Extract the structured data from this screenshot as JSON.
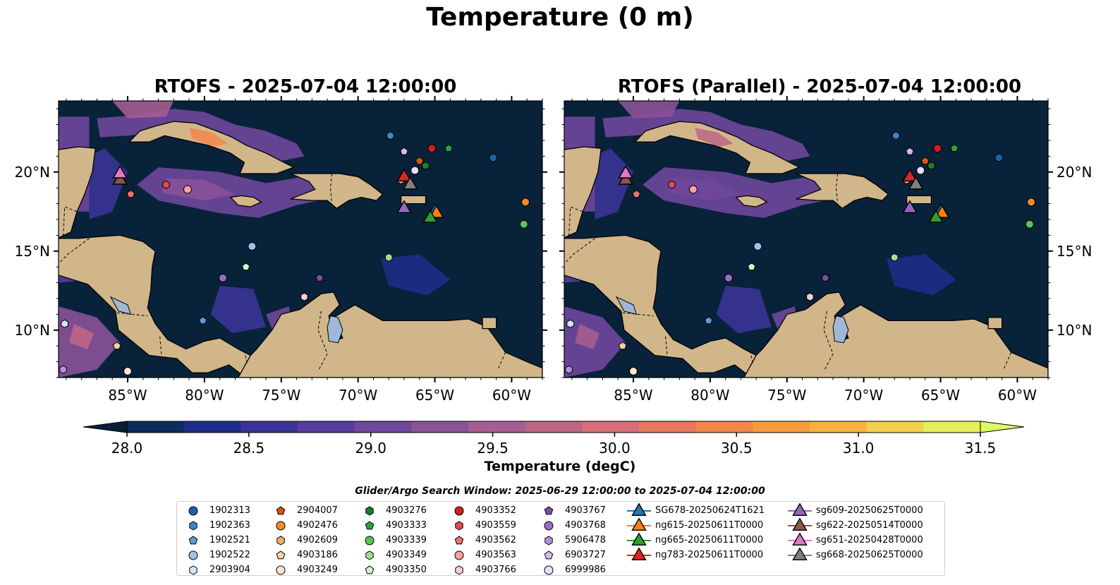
{
  "title": "Temperature (0 m)",
  "panels": [
    {
      "title": "RTOFS - 2025-07-04 12:00:00"
    },
    {
      "title": "RTOFS (Parallel) - 2025-07-04 12:00:00"
    }
  ],
  "map": {
    "lon_range": [
      -89.5,
      -58
    ],
    "lat_range": [
      7,
      24.5
    ],
    "lon_ticks": [
      "85°W",
      "80°W",
      "75°W",
      "70°W",
      "65°W",
      "60°W"
    ],
    "lon_tick_values": [
      -85,
      -80,
      -75,
      -70,
      -65,
      -60
    ],
    "lat_ticks": [
      "10°N",
      "15°N",
      "20°N"
    ],
    "lat_tick_values": [
      10,
      15,
      20
    ],
    "colors": {
      "ocean": "#08223a",
      "land": "#d1b68a",
      "lakes": "#9fb8d6"
    }
  },
  "colorbar": {
    "label": "Temperature (degC)",
    "ticks": [
      "28.0",
      "28.5",
      "29.0",
      "29.5",
      "30.0",
      "30.5",
      "31.0",
      "31.5"
    ],
    "tick_values": [
      28.0,
      28.5,
      29.0,
      29.5,
      30.0,
      30.5,
      31.0,
      31.5
    ],
    "range": [
      28.0,
      31.5
    ],
    "extend": "both",
    "colors": [
      "#082037",
      "#0b2c5e",
      "#1e2d88",
      "#3b3497",
      "#563c9a",
      "#6f479c",
      "#8a5299",
      "#a55d92",
      "#bd6686",
      "#d66f78",
      "#e9785f",
      "#f4874a",
      "#f89b3d",
      "#f8b23f",
      "#f2cf4f",
      "#e5ee5e",
      "#ddfb66"
    ]
  },
  "legend": {
    "title": "Glider/Argo Search Window: 2025-06-29 12:00:00 to 2025-07-04 12:00:00",
    "columns": [
      [
        {
          "label": "1902313",
          "marker": "circle",
          "color": "#1f5fa8",
          "lon": -61.2,
          "lat": 20.9
        },
        {
          "label": "1902363",
          "marker": "hexagon",
          "color": "#3f84c4",
          "lon": -67.9,
          "lat": 22.3
        },
        {
          "label": "1902521",
          "marker": "pentagon",
          "color": "#5c9bd6",
          "lon": -80.1,
          "lat": 10.6
        },
        {
          "label": "1902522",
          "marker": "circle",
          "color": "#9dc3e8",
          "lon": -76.9,
          "lat": 15.3
        },
        {
          "label": "2903904",
          "marker": "hexagon",
          "color": "#d2e4f5",
          "lon": -89.1,
          "lat": 10.4
        }
      ],
      [
        {
          "label": "2904007",
          "marker": "pentagon",
          "color": "#d2590c",
          "lon": -66.0,
          "lat": 20.7
        },
        {
          "label": "4902476",
          "marker": "circle",
          "color": "#f48a30",
          "lon": -59.1,
          "lat": 18.1
        },
        {
          "label": "4902609",
          "marker": "hexagon",
          "color": "#fbad6b",
          "lon": -67.2,
          "lat": 19.5
        },
        {
          "label": "4903186",
          "marker": "pentagon",
          "color": "#fdd2a0",
          "lon": -85.7,
          "lat": 9.0
        },
        {
          "label": "4903249",
          "marker": "circle",
          "color": "#fee6cd",
          "lon": -85.0,
          "lat": 7.4
        }
      ],
      [
        {
          "label": "4903276",
          "marker": "hexagon",
          "color": "#1b7d2c",
          "lon": -65.6,
          "lat": 20.4
        },
        {
          "label": "4903333",
          "marker": "pentagon",
          "color": "#2ea043",
          "lon": -64.1,
          "lat": 21.5
        },
        {
          "label": "4903339",
          "marker": "circle",
          "color": "#5ac35c",
          "lon": -59.2,
          "lat": 16.7
        },
        {
          "label": "4903349",
          "marker": "hexagon",
          "color": "#9ee091",
          "lon": -68.0,
          "lat": 14.6
        },
        {
          "label": "4903350",
          "marker": "pentagon",
          "color": "#d1f4c7",
          "lon": -77.3,
          "lat": 14.0
        }
      ],
      [
        {
          "label": "4903352",
          "marker": "circle",
          "color": "#d21f1f",
          "lon": -65.2,
          "lat": 21.5
        },
        {
          "label": "4903559",
          "marker": "hexagon",
          "color": "#e34a4a",
          "lon": -82.5,
          "lat": 19.2
        },
        {
          "label": "4903562",
          "marker": "pentagon",
          "color": "#f07070",
          "lon": -84.8,
          "lat": 18.6
        },
        {
          "label": "4903563",
          "marker": "circle",
          "color": "#f8a3a3",
          "lon": -81.1,
          "lat": 18.9
        },
        {
          "label": "4903766",
          "marker": "hexagon",
          "color": "#fdd0d0",
          "lon": -73.5,
          "lat": 12.1
        }
      ],
      [
        {
          "label": "4903767",
          "marker": "pentagon",
          "color": "#7e4ea6",
          "lon": -72.5,
          "lat": 13.3
        },
        {
          "label": "4903768",
          "marker": "circle",
          "color": "#9b6cc5",
          "lon": -78.8,
          "lat": 13.3
        },
        {
          "label": "5906478",
          "marker": "hexagon",
          "color": "#b591dd",
          "lon": -89.2,
          "lat": 7.5
        },
        {
          "label": "6903727",
          "marker": "pentagon",
          "color": "#d4b8ef",
          "lon": -67.0,
          "lat": 21.3
        },
        {
          "label": "6999986",
          "marker": "circle",
          "color": "#eadcfb",
          "lon": -66.3,
          "lat": 20.1
        }
      ],
      [
        {
          "label": "SG678-20250624T1621",
          "marker": "triangle",
          "color": "#1f77b4",
          "lon": -65.0,
          "lat": 17.6
        },
        {
          "label": "ng615-20250611T0000",
          "marker": "triangle",
          "color": "#ff7f0e",
          "lon": -64.9,
          "lat": 17.5
        },
        {
          "label": "ng665-20250611T0000",
          "marker": "triangle",
          "color": "#2ca02c",
          "lon": -65.3,
          "lat": 17.2
        },
        {
          "label": "ng783-20250611T0000",
          "marker": "triangle",
          "color": "#d62728",
          "lon": -67.0,
          "lat": 19.8
        }
      ],
      [
        {
          "label": "sg609-20250625T0000",
          "marker": "triangle",
          "color": "#9467bd",
          "lon": -67.0,
          "lat": 17.8
        },
        {
          "label": "sg622-20250514T0000",
          "marker": "triangle",
          "color": "#8c564b",
          "lon": -85.5,
          "lat": 19.6
        },
        {
          "label": "sg651-20250428T0000",
          "marker": "triangle",
          "color": "#e377c2",
          "lon": -85.5,
          "lat": 20.0
        },
        {
          "label": "sg668-20250625T0000",
          "marker": "triangle",
          "color": "#7f7f7f",
          "lon": -66.6,
          "lat": 19.3
        }
      ]
    ]
  }
}
